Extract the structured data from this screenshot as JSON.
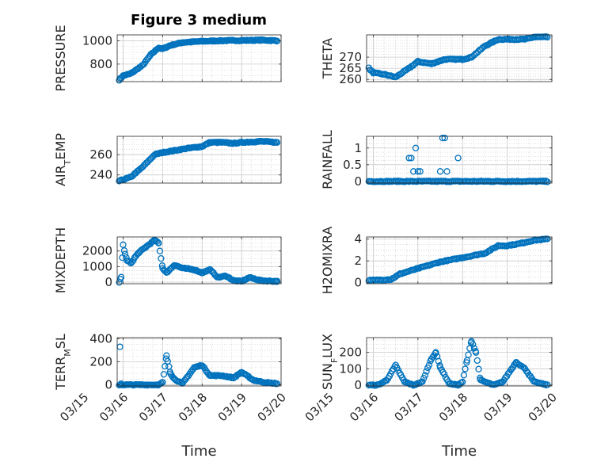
{
  "figure_title": "Figure 3 medium",
  "colors": {
    "marker": "#0072BD",
    "axis": "#262626",
    "grid": "#c8c8c8",
    "background": "#ffffff"
  },
  "chart_data": [
    {
      "type": "scatter",
      "ylabel": "PRESSURE",
      "ylim": [
        650,
        1050
      ],
      "yticks": [
        800,
        1000
      ],
      "yticklabels": [
        "800",
        "1000"
      ],
      "grid": true,
      "marker": "circle-open",
      "anchors": [
        [
          15.9,
          665
        ],
        [
          16.0,
          700
        ],
        [
          16.2,
          720
        ],
        [
          16.5,
          790
        ],
        [
          16.7,
          880
        ],
        [
          16.9,
          940
        ],
        [
          17.0,
          930
        ],
        [
          17.2,
          960
        ],
        [
          17.5,
          985
        ],
        [
          18.0,
          995
        ],
        [
          18.5,
          1000
        ],
        [
          19.0,
          1002
        ],
        [
          19.5,
          1005
        ],
        [
          19.9,
          1000
        ]
      ]
    },
    {
      "type": "scatter",
      "ylabel": "THETA",
      "ylim": [
        259,
        280
      ],
      "yticks": [
        260,
        265,
        270
      ],
      "yticklabels": [
        "260",
        "265",
        "270"
      ],
      "grid": true,
      "marker": "circle-open",
      "anchors": [
        [
          15.9,
          265
        ],
        [
          16.0,
          263
        ],
        [
          16.3,
          262
        ],
        [
          16.5,
          261
        ],
        [
          16.8,
          265
        ],
        [
          17.0,
          268
        ],
        [
          17.3,
          267
        ],
        [
          17.6,
          269
        ],
        [
          18.0,
          269
        ],
        [
          18.2,
          270
        ],
        [
          18.5,
          275
        ],
        [
          18.8,
          278
        ],
        [
          19.0,
          278
        ],
        [
          19.4,
          278
        ],
        [
          19.6,
          279
        ],
        [
          19.9,
          279
        ]
      ]
    },
    {
      "type": "scatter",
      "ylabel": "AIR",
      "ylabel_sub": "T",
      "ylabel_rest": "EMP",
      "ylim": [
        232,
        278
      ],
      "yticks": [
        240,
        260
      ],
      "yticklabels": [
        "240",
        "260"
      ],
      "grid": true,
      "marker": "circle-open",
      "anchors": [
        [
          15.9,
          234
        ],
        [
          16.2,
          238
        ],
        [
          16.5,
          248
        ],
        [
          16.8,
          260
        ],
        [
          17.0,
          262
        ],
        [
          17.3,
          264
        ],
        [
          17.6,
          266
        ],
        [
          18.0,
          268
        ],
        [
          18.2,
          272
        ],
        [
          18.5,
          272
        ],
        [
          18.8,
          271
        ],
        [
          19.0,
          272
        ],
        [
          19.5,
          273
        ],
        [
          19.9,
          272
        ]
      ]
    },
    {
      "type": "scatter",
      "ylabel": "RAINFALL",
      "ylim": [
        -0.05,
        1.35
      ],
      "yticks": [
        0,
        0.5,
        1
      ],
      "yticklabels": [
        "0",
        "0.5",
        "1"
      ],
      "grid": true,
      "marker": "circle-open",
      "anchors": [
        [
          15.9,
          0
        ],
        [
          19.9,
          0
        ]
      ],
      "extra_points": [
        [
          16.8,
          0.7
        ],
        [
          16.85,
          0.7
        ],
        [
          16.9,
          0.3
        ],
        [
          16.95,
          1.0
        ],
        [
          17.0,
          0.3
        ],
        [
          17.05,
          0.3
        ],
        [
          17.5,
          0.3
        ],
        [
          17.55,
          1.3
        ],
        [
          17.6,
          1.3
        ],
        [
          17.65,
          0.3
        ],
        [
          17.9,
          0.7
        ]
      ]
    },
    {
      "type": "scatter",
      "ylabel": "MIXDEPTH",
      "ylim": [
        -100,
        2900
      ],
      "yticks": [
        0,
        1000,
        2000
      ],
      "yticklabels": [
        "0",
        "1000",
        "2000"
      ],
      "grid": true,
      "marker": "circle-open",
      "anchors": [
        [
          15.9,
          0
        ],
        [
          15.95,
          300
        ],
        [
          16.0,
          2400
        ],
        [
          16.05,
          1800
        ],
        [
          16.1,
          1400
        ],
        [
          16.2,
          1200
        ],
        [
          16.3,
          1600
        ],
        [
          16.4,
          1900
        ],
        [
          16.6,
          2300
        ],
        [
          16.8,
          2700
        ],
        [
          16.9,
          2500
        ],
        [
          17.0,
          900
        ],
        [
          17.1,
          600
        ],
        [
          17.3,
          1100
        ],
        [
          17.5,
          900
        ],
        [
          17.8,
          800
        ],
        [
          18.0,
          600
        ],
        [
          18.2,
          800
        ],
        [
          18.4,
          300
        ],
        [
          18.6,
          400
        ],
        [
          18.8,
          100
        ],
        [
          19.0,
          50
        ],
        [
          19.2,
          300
        ],
        [
          19.5,
          100
        ],
        [
          19.9,
          50
        ]
      ]
    },
    {
      "type": "scatter",
      "ylabel": "H2OMIXRA",
      "ylim": [
        -0.1,
        4.2
      ],
      "yticks": [
        0,
        2,
        4
      ],
      "yticklabels": [
        "0",
        "2",
        "4"
      ],
      "grid": true,
      "marker": "circle-open",
      "anchors": [
        [
          15.9,
          0.2
        ],
        [
          16.4,
          0.3
        ],
        [
          16.6,
          0.8
        ],
        [
          17.0,
          1.3
        ],
        [
          17.5,
          1.9
        ],
        [
          18.0,
          2.3
        ],
        [
          18.5,
          2.7
        ],
        [
          18.8,
          3.4
        ],
        [
          19.0,
          3.4
        ],
        [
          19.3,
          3.6
        ],
        [
          19.6,
          3.9
        ],
        [
          19.9,
          4.0
        ]
      ]
    },
    {
      "type": "scatter",
      "ylabel": "TERR",
      "ylabel_sub": "M",
      "ylabel_rest": "SL",
      "ylim": [
        -10,
        410
      ],
      "yticks": [
        0,
        200,
        400
      ],
      "yticklabels": [
        "0",
        "200",
        "400"
      ],
      "grid": true,
      "marker": "circle-open",
      "anchors": [
        [
          15.9,
          0
        ],
        [
          16.9,
          0
        ],
        [
          17.0,
          20
        ],
        [
          17.1,
          250
        ],
        [
          17.2,
          100
        ],
        [
          17.3,
          50
        ],
        [
          17.5,
          10
        ],
        [
          17.8,
          150
        ],
        [
          18.0,
          170
        ],
        [
          18.2,
          80
        ],
        [
          18.5,
          80
        ],
        [
          18.8,
          60
        ],
        [
          19.0,
          110
        ],
        [
          19.3,
          40
        ],
        [
          19.6,
          20
        ],
        [
          19.9,
          10
        ]
      ],
      "extra_points": [
        [
          15.92,
          330
        ],
        [
          15.95,
          10
        ]
      ],
      "xticks": [
        "03/15",
        "03/16",
        "03/17",
        "03/18",
        "03/19",
        "03/20"
      ],
      "xlabel": "Time"
    },
    {
      "type": "scatter",
      "ylabel": "SUN",
      "ylabel_sub": "F",
      "ylabel_rest": "LUX",
      "ylim": [
        -5,
        290
      ],
      "yticks": [
        0,
        100,
        200
      ],
      "yticklabels": [
        "0",
        "100",
        "200"
      ],
      "grid": true,
      "marker": "circle-open",
      "anchors": [
        [
          15.9,
          0
        ],
        [
          16.1,
          0
        ],
        [
          16.3,
          30
        ],
        [
          16.5,
          120
        ],
        [
          16.7,
          20
        ],
        [
          16.9,
          0
        ],
        [
          17.1,
          20
        ],
        [
          17.3,
          160
        ],
        [
          17.4,
          200
        ],
        [
          17.5,
          110
        ],
        [
          17.7,
          10
        ],
        [
          17.9,
          0
        ],
        [
          18.0,
          20
        ],
        [
          18.1,
          150
        ],
        [
          18.2,
          270
        ],
        [
          18.3,
          200
        ],
        [
          18.4,
          30
        ],
        [
          18.7,
          0
        ],
        [
          18.9,
          20
        ],
        [
          19.1,
          100
        ],
        [
          19.2,
          140
        ],
        [
          19.4,
          100
        ],
        [
          19.6,
          20
        ],
        [
          19.9,
          0
        ]
      ],
      "xticks": [
        "03/15",
        "03/16",
        "03/17",
        "03/18",
        "03/19",
        "03/20"
      ],
      "xlabel": "Time"
    }
  ]
}
